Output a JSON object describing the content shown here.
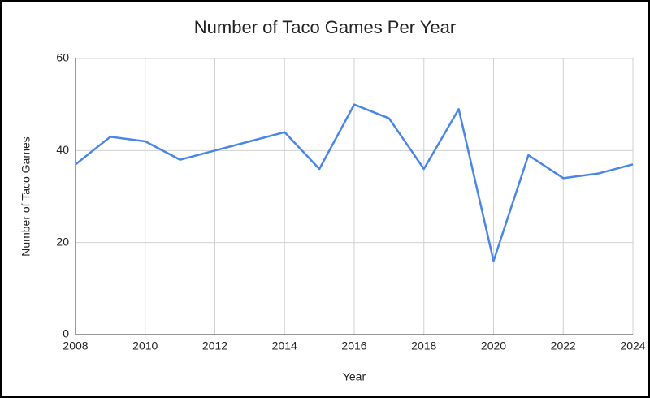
{
  "chart_data": {
    "type": "line",
    "title": "Number of Taco Games Per Year",
    "x_label": "Year",
    "y_label": "Number of Taco Games",
    "x": [
      2008,
      2009,
      2010,
      2011,
      2012,
      2013,
      2014,
      2015,
      2016,
      2017,
      2018,
      2019,
      2020,
      2021,
      2022,
      2023,
      2024
    ],
    "values": [
      37,
      43,
      42,
      38,
      40,
      42,
      44,
      36,
      50,
      47,
      36,
      49,
      16,
      39,
      34,
      35,
      37
    ],
    "color": "#4a86e8",
    "xlim": [
      2008,
      2024
    ],
    "xticks": [
      2008,
      2010,
      2012,
      2014,
      2016,
      2018,
      2020,
      2022,
      2024
    ],
    "ylim": [
      0,
      60
    ],
    "yticks": [
      0,
      20,
      40,
      60
    ],
    "grid": true
  }
}
